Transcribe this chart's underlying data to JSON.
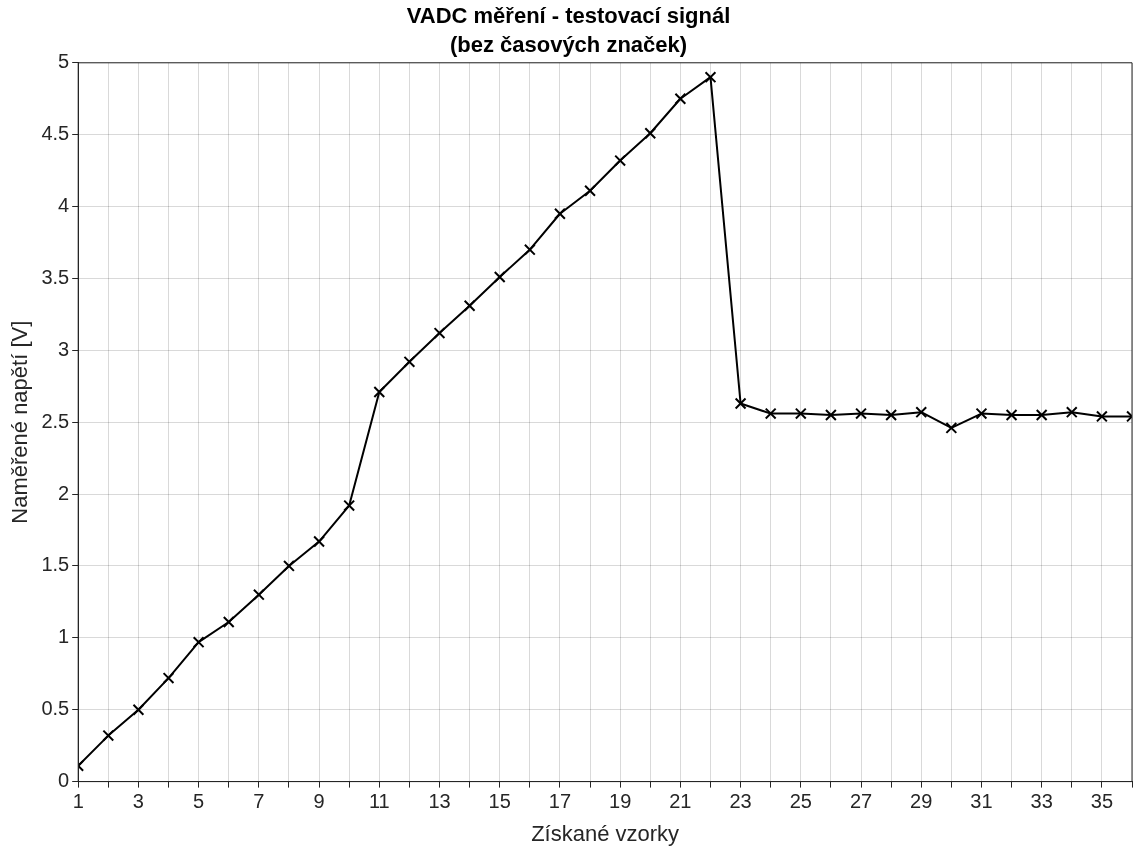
{
  "chart_data": {
    "type": "line",
    "title": "VADC měření - testovací signál",
    "subtitle": "(bez časových značek)",
    "xlabel": "Získané vzorky",
    "ylabel": "Naměřené napětí [V]",
    "x": [
      1,
      2,
      3,
      4,
      5,
      6,
      7,
      8,
      9,
      10,
      11,
      12,
      13,
      14,
      15,
      16,
      17,
      18,
      19,
      20,
      21,
      22,
      23,
      24,
      25,
      26,
      27,
      28,
      29,
      30,
      31,
      32,
      33,
      34,
      35,
      36
    ],
    "series": [
      {
        "color": "#000000",
        "values": [
          0.11,
          0.32,
          0.5,
          0.72,
          0.97,
          1.11,
          1.3,
          1.5,
          1.67,
          1.92,
          2.71,
          2.92,
          3.12,
          3.31,
          3.51,
          3.7,
          3.95,
          4.11,
          4.32,
          4.51,
          4.75,
          4.9,
          2.63,
          2.56,
          2.56,
          2.55,
          2.56,
          2.55,
          2.57,
          2.46,
          2.56,
          2.55,
          2.55,
          2.57,
          2.54,
          2.54
        ]
      }
    ],
    "xlim": [
      1,
      36
    ],
    "xticks": [
      1,
      {
        "value": 2,
        "label": null
      },
      3,
      {
        "value": 4,
        "label": null
      },
      5,
      {
        "value": 6,
        "label": null
      },
      7,
      {
        "value": 8,
        "label": null
      },
      9,
      {
        "value": 10,
        "label": null
      },
      11,
      {
        "value": 12,
        "label": null
      },
      13,
      {
        "value": 14,
        "label": null
      },
      15,
      {
        "value": 16,
        "label": null
      },
      17,
      {
        "value": 18,
        "label": null
      },
      19,
      {
        "value": 20,
        "label": null
      },
      21,
      {
        "value": 22,
        "label": null
      },
      23,
      {
        "value": 24,
        "label": null
      },
      25,
      {
        "value": 26,
        "label": null
      },
      27,
      {
        "value": 28,
        "label": null
      },
      29,
      {
        "value": 30,
        "label": null
      },
      31,
      {
        "value": 32,
        "label": null
      },
      33,
      {
        "value": 34,
        "label": null
      },
      35,
      {
        "value": 36,
        "label": null
      }
    ],
    "ylim": [
      0,
      5
    ],
    "yticks": [
      0,
      0.5,
      1,
      1.5,
      2,
      2.5,
      3,
      3.5,
      4,
      4.5,
      5
    ],
    "grid": true,
    "legend": false,
    "marker": "cross",
    "line_style": "solid"
  }
}
